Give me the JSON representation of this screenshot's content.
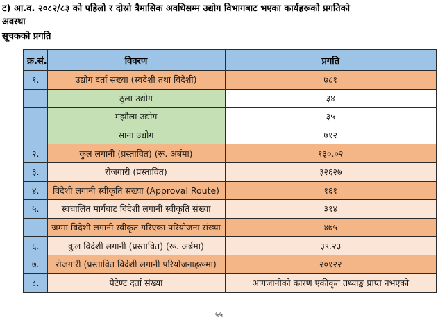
{
  "page": {
    "title_line1": "ट) आ.व. २०८२/८३ को पहिलो र दोस्रो त्रैमासिक अवधिसम्म उद्योग विभागबाट भएका कार्यहरूको प्रगतिको",
    "title_line2": "अवस्था",
    "subtitle": "सूचकको प्रगति",
    "page_number_partial": "५५"
  },
  "table": {
    "colors": {
      "header_blue": "#9DC3E6",
      "sn_blue": "#9DC3E6",
      "salmon": "#F4B587",
      "peach": "#FBE5D6",
      "green": "#C5E0B4",
      "white": "#FFFFFF",
      "border": "#2B2B2B"
    },
    "headers": {
      "sn": "क्र.सं.",
      "description": "विवरण",
      "progress": "प्रगति"
    },
    "rows": [
      {
        "sn": "१.",
        "description": "उद्योग दर्ता संख्या (स्वदेशी तथा विदेशी)",
        "progress": "७८१"
      },
      {
        "sn": "",
        "description": "ठूला उद्योग",
        "progress": "३४"
      },
      {
        "sn": "",
        "description": "मझौला उद्योग",
        "progress": "३५"
      },
      {
        "sn": "",
        "description": "साना उद्योग",
        "progress": "७१२"
      },
      {
        "sn": "२.",
        "description": "कुल लगानी (प्रस्तावित) (रू. अर्बमा)",
        "progress": "१३०.०२"
      },
      {
        "sn": "३.",
        "description": "रोजगारी (प्रस्तावित)",
        "progress": "३२६२७"
      },
      {
        "sn": "४.",
        "description": "विदेशी लगानी स्वीकृति संख्या (Approval Route)",
        "progress": "१६१"
      },
      {
        "sn": "५.",
        "description": "स्वचालित मार्गबाट विदेशी लगानी स्वीकृति संख्या",
        "progress": "३१४"
      },
      {
        "sn": "",
        "description": "जम्मा विदेशी लगानी स्वीकृत गरिएका परियोजना संख्या",
        "progress": "४७५"
      },
      {
        "sn": "६.",
        "description": "कुल विदेशी लगानी (प्रस्तावित) (रू. अर्बमा)",
        "progress": "३९.२३"
      },
      {
        "sn": "७.",
        "description": "रोजगारी (प्रस्तावित विदेशी लगानी परियोजनाहरूमा)",
        "progress": "२०१२२"
      },
      {
        "sn": "८.",
        "description": "पेटेण्ट दर्ता संख्या",
        "progress": "आगजानीको कारण एकीकृत तथ्याङ्क प्राप्त नभएको"
      }
    ]
  }
}
